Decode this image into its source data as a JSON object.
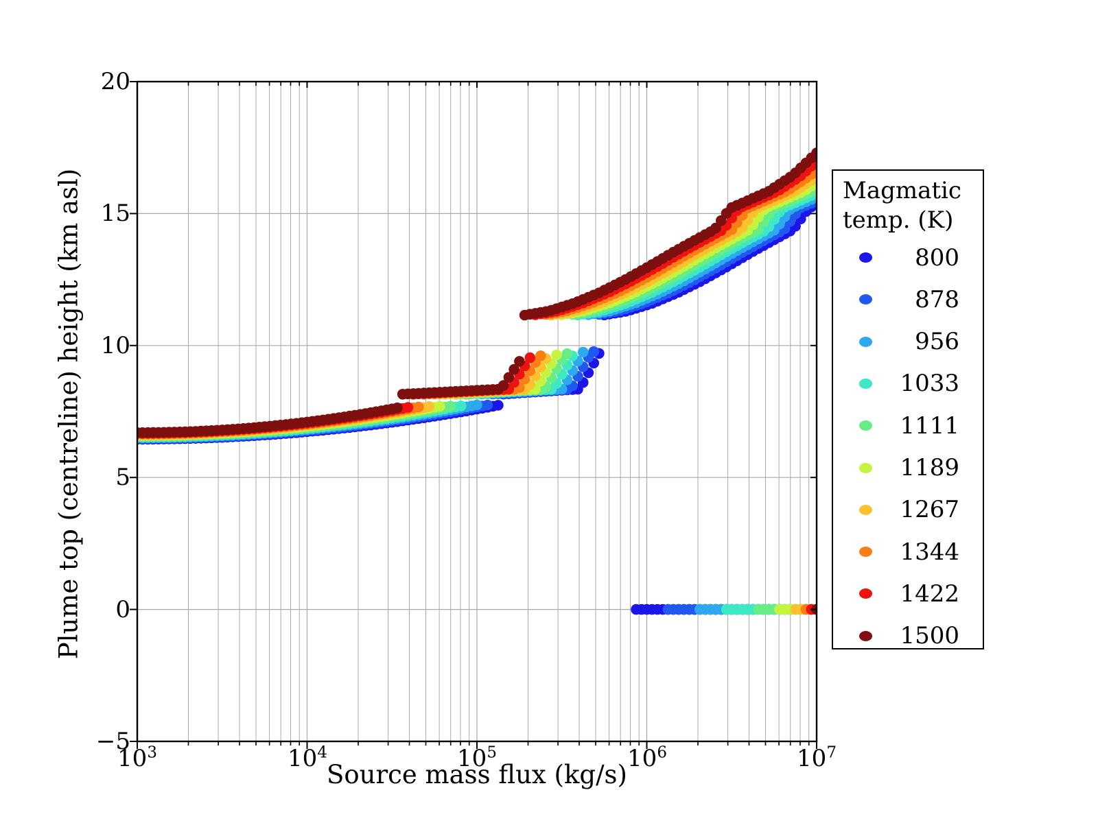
{
  "chart_data": {
    "type": "scatter",
    "title": "",
    "xlabel": "Source mass flux (kg/s)",
    "ylabel": "Plume top (centreline) height (km asl)",
    "x_scale": "log",
    "xlim": [
      1000,
      10000000
    ],
    "ylim": [
      -5,
      20
    ],
    "grid": true,
    "x_ticks": [
      {
        "base": "10",
        "exp": "3",
        "value": 1000
      },
      {
        "base": "10",
        "exp": "4",
        "value": 10000
      },
      {
        "base": "10",
        "exp": "5",
        "value": 100000
      },
      {
        "base": "10",
        "exp": "6",
        "value": 1000000
      },
      {
        "base": "10",
        "exp": "7",
        "value": 10000000
      }
    ],
    "y_ticks": [
      {
        "label": "20",
        "value": 20
      },
      {
        "label": "15",
        "value": 15
      },
      {
        "label": "10",
        "value": 10
      },
      {
        "label": "5",
        "value": 5
      },
      {
        "label": "0",
        "value": 0
      },
      {
        "label": "−5",
        "value": -5
      }
    ],
    "grid_color": "#a9a9a9",
    "legend": {
      "title_lines": [
        "Magmatic",
        "temp. (K)"
      ],
      "position": "right",
      "entries": [
        {
          "temp": "800",
          "color": "#1b15ea"
        },
        {
          "temp": "878",
          "color": "#2158f0"
        },
        {
          "temp": "956",
          "color": "#2da9f0"
        },
        {
          "temp": "1033",
          "color": "#3de9c5"
        },
        {
          "temp": "1111",
          "color": "#68ed86"
        },
        {
          "temp": "1189",
          "color": "#c3f43e"
        },
        {
          "temp": "1267",
          "color": "#fbc22d"
        },
        {
          "temp": "1344",
          "color": "#f97e16"
        },
        {
          "temp": "1422",
          "color": "#ec1310"
        },
        {
          "temp": "1500",
          "color": "#7d0f0e"
        }
      ]
    },
    "points_per_decade": 32,
    "marker_radius_px": 7.8,
    "shelf_h": [
      8.15,
      8.35
    ],
    "upper_master_f0": 190000,
    "upper_master_logf": [
      5.279,
      5.42,
      5.57,
      5.72,
      5.86,
      6.0,
      6.16,
      6.3,
      6.4,
      6.445,
      6.49,
      6.58,
      6.72,
      6.86,
      7.0
    ],
    "upper_master_h": [
      11.15,
      11.3,
      11.6,
      12.0,
      12.45,
      12.95,
      13.55,
      14.05,
      14.4,
      14.8,
      15.2,
      15.45,
      15.85,
      16.45,
      17.3
    ],
    "series": [
      {
        "temp": 800,
        "color": "#1b15ea",
        "lower_h0": 6.45,
        "lower_b": 0.285,
        "f_shelf": 135000,
        "f_upper": 550000,
        "mid_top": 9.8,
        "f_collapse": 850000
      },
      {
        "temp": 878,
        "color": "#2158f0",
        "lower_h0": 6.478,
        "lower_b": 0.298,
        "f_shelf": 116400,
        "f_upper": 488000,
        "mid_top": 9.77,
        "f_collapse": 1300000
      },
      {
        "temp": 956,
        "color": "#2da9f0",
        "lower_h0": 6.506,
        "lower_b": 0.311,
        "f_shelf": 100100,
        "f_upper": 433700,
        "mid_top": 9.75,
        "f_collapse": 2000000
      },
      {
        "temp": 1033,
        "color": "#3de9c5",
        "lower_h0": 6.533,
        "lower_b": 0.324,
        "f_shelf": 86200,
        "f_upper": 385500,
        "mid_top": 9.72,
        "f_collapse": 2900000
      },
      {
        "temp": 1111,
        "color": "#68ed86",
        "lower_h0": 6.561,
        "lower_b": 0.336,
        "f_shelf": 74200,
        "f_upper": 342600,
        "mid_top": 9.69,
        "f_collapse": 4500000
      },
      {
        "temp": 1189,
        "color": "#c3f43e",
        "lower_h0": 6.589,
        "lower_b": 0.349,
        "f_shelf": 63800,
        "f_upper": 304500,
        "mid_top": 9.66,
        "f_collapse": 5900000
      },
      {
        "temp": 1267,
        "color": "#fbc22d",
        "lower_h0": 6.617,
        "lower_b": 0.362,
        "f_shelf": 54900,
        "f_upper": 270600,
        "mid_top": 9.64,
        "f_collapse": 7400000
      },
      {
        "temp": 1344,
        "color": "#f97e16",
        "lower_h0": 6.644,
        "lower_b": 0.375,
        "f_shelf": 47300,
        "f_upper": 240500,
        "mid_top": 9.61,
        "f_collapse": 8500000
      },
      {
        "temp": 1422,
        "color": "#ec1310",
        "lower_h0": 6.672,
        "lower_b": 0.387,
        "f_shelf": 40700,
        "f_upper": 213800,
        "mid_top": 9.58,
        "f_collapse": 9300000
      },
      {
        "temp": 1500,
        "color": "#7d0f0e",
        "lower_h0": 6.7,
        "lower_b": 0.4,
        "f_shelf": 35000,
        "f_upper": 190000,
        "mid_top": 9.55,
        "f_collapse": 9800000
      }
    ]
  }
}
